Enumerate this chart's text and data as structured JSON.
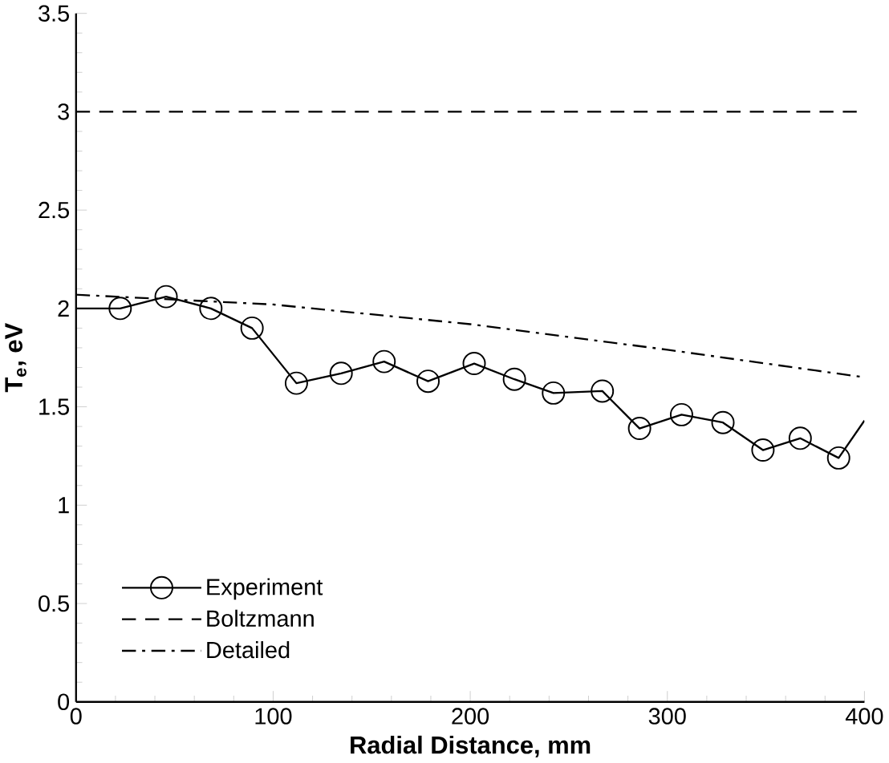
{
  "chart_data": {
    "type": "line",
    "xlabel": "Radial Distance, mm",
    "ylabel": "T$_{e}$, eV",
    "xlim": [
      0,
      400
    ],
    "ylim": [
      0,
      3.5
    ],
    "xticks": [
      0,
      100,
      200,
      300,
      400
    ],
    "yticks": [
      0,
      0.5,
      1,
      1.5,
      2,
      2.5,
      3,
      3.5
    ],
    "grid": false,
    "legend": "bottom left",
    "series": [
      {
        "name": "Experiment",
        "color": "#000000",
        "marker": "circle",
        "line_style": "solid",
        "x": [
          0,
          22.4,
          45.7,
          68.4,
          89.3,
          111.8,
          134.5,
          156.3,
          178.6,
          202,
          222.4,
          242.2,
          267,
          285.9,
          307.2,
          328.2,
          348.5,
          367.4,
          386.9,
          400
        ],
        "values": [
          2.0,
          2.0,
          2.06,
          2.0,
          1.9,
          1.62,
          1.67,
          1.73,
          1.63,
          1.72,
          1.64,
          1.57,
          1.58,
          1.39,
          1.46,
          1.42,
          1.28,
          1.34,
          1.24,
          1.43
        ]
      },
      {
        "name": "Boltzmann",
        "color": "#000000",
        "marker": "none",
        "line_style": "dashed",
        "x": [
          0,
          400
        ],
        "values": [
          3,
          3
        ]
      },
      {
        "name": "Detailed",
        "color": "#000000",
        "marker": "none",
        "line_style": "dashdot",
        "x": [
          0,
          100,
          200,
          300,
          400
        ],
        "values": [
          2.07,
          2.02,
          1.92,
          1.79,
          1.65
        ]
      }
    ]
  }
}
